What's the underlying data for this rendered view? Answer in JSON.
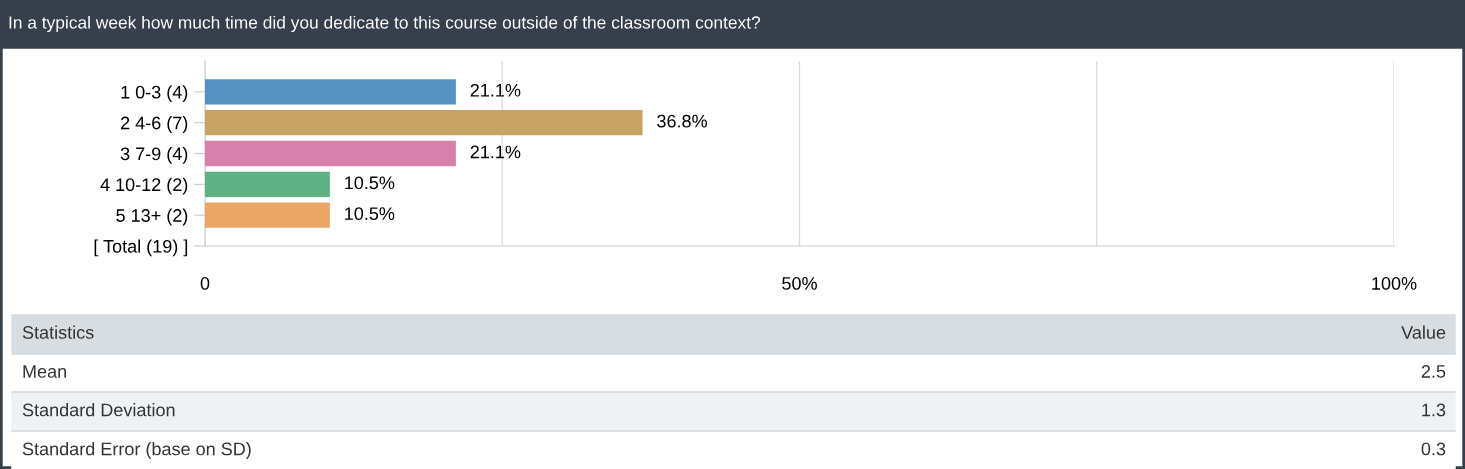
{
  "chart_data": {
    "type": "bar",
    "orientation": "horizontal",
    "title": "In a typical week how much time did you dedicate to this course outside of the classroom context?",
    "categories": [
      "1 0-3 (4)",
      "2 4-6 (7)",
      "3 7-9 (4)",
      "4 10-12 (2)",
      "5 13+ (2)",
      "[ Total (19) ]"
    ],
    "values": [
      21.1,
      36.8,
      21.1,
      10.5,
      10.5,
      null
    ],
    "colors": [
      "#5592c1",
      "#c8a464",
      "#d680ab",
      "#5fb185",
      "#e9a666",
      "#cccccc"
    ],
    "value_labels": [
      "21.1%",
      "36.8%",
      "21.1%",
      "10.5%",
      "10.5%",
      null
    ],
    "xlim": [
      0,
      100
    ],
    "xticks": [
      0,
      {
        "value": 25,
        "label": null
      },
      {
        "value": 50,
        "label": "50%"
      },
      {
        "value": 75,
        "label": null
      },
      {
        "value": 100,
        "label": "100%"
      }
    ],
    "grid": "x",
    "annotations": [
      "Statistics",
      "Value",
      "Mean",
      "2.5",
      "Standard Deviation",
      "1.3",
      "Standard Error (base on SD)",
      "0.3"
    ]
  }
}
